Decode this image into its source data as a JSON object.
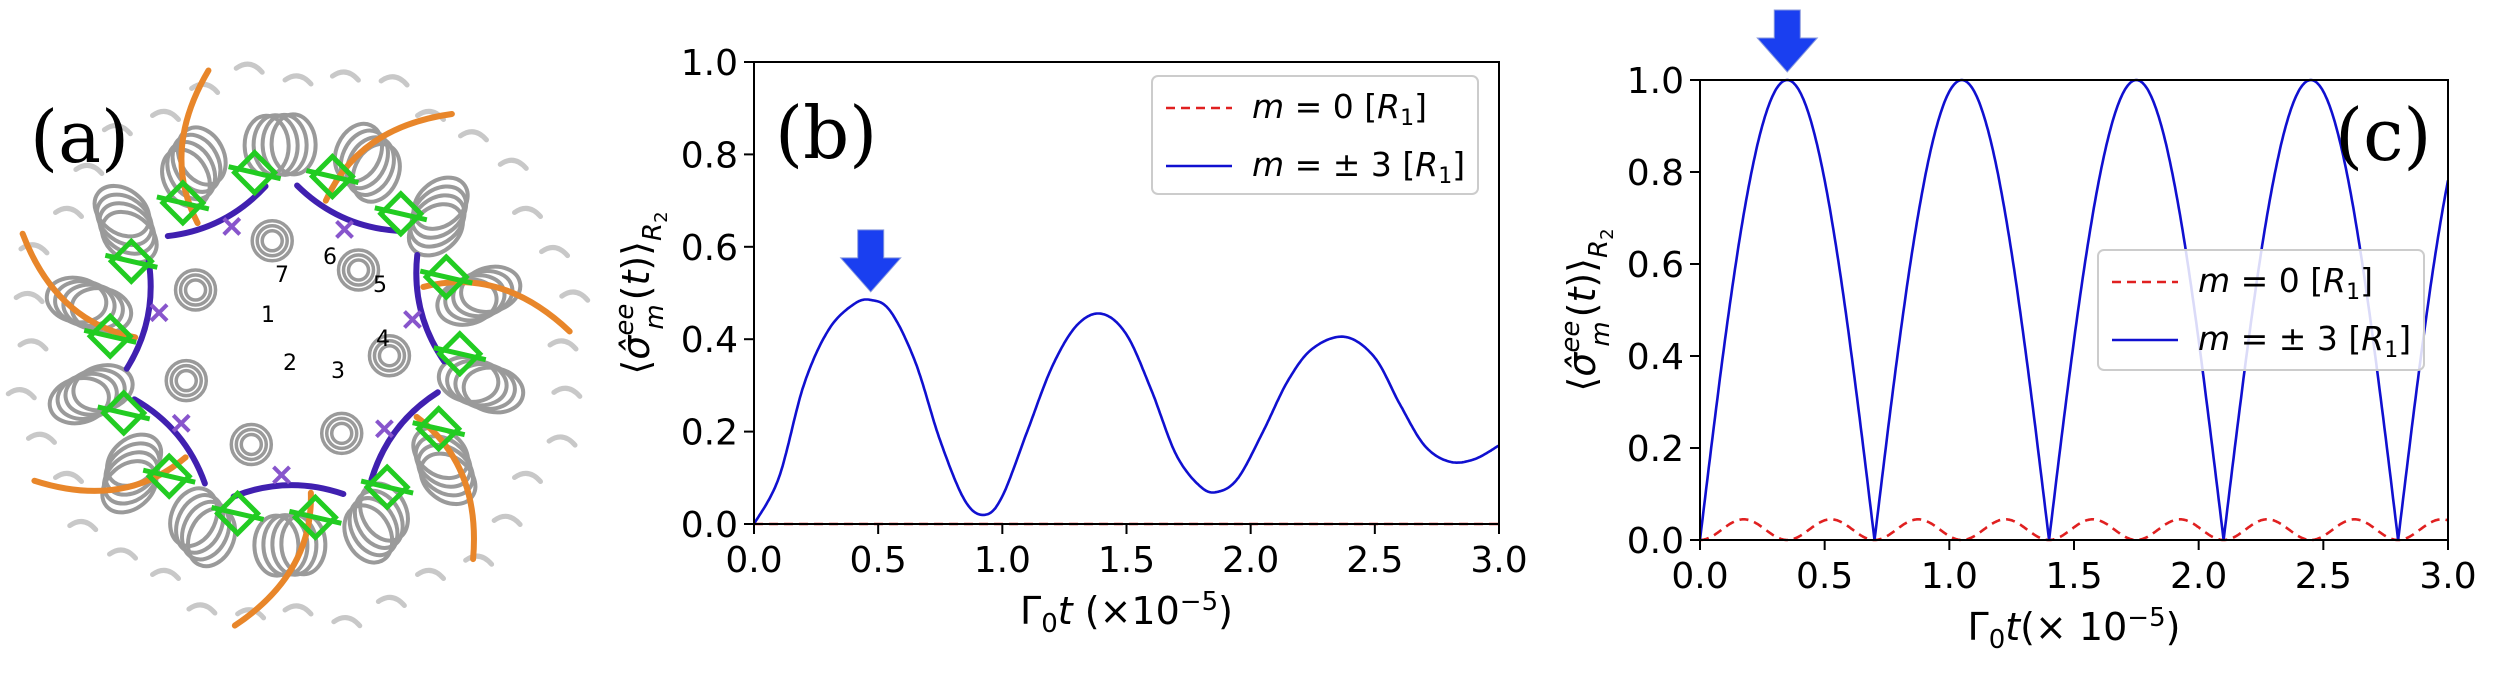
{
  "panel_a": {
    "label": "(a)",
    "ring_labels": [
      "1",
      "2",
      "3",
      "4",
      "5",
      "6",
      "7"
    ],
    "colors": {
      "helix": "#9a9a9a",
      "chlorophyll": "#22cc22",
      "carotenoid": "#e8862a",
      "link": "#4020b0",
      "ligand": "#8855cc"
    }
  },
  "chart_data": [
    {
      "panel": "(b)",
      "type": "line",
      "xlabel": "Γ₀t (×10⁻⁵)",
      "ylabel": "⟨σ̂ₘᵉᵉ(t)⟩_R₂",
      "xlim": [
        0.0,
        3.0
      ],
      "ylim": [
        0.0,
        1.0
      ],
      "xticks": [
        "0.0",
        "0.5",
        "1.0",
        "1.5",
        "2.0",
        "2.5",
        "3.0"
      ],
      "yticks": [
        "0.0",
        "0.2",
        "0.4",
        "0.6",
        "0.8",
        "1.0"
      ],
      "grid": false,
      "legend_position": "top-right",
      "arrow_at": {
        "x": 0.47,
        "y": 0.485
      },
      "series": [
        {
          "name": "m = 0 [R₁]",
          "style": "dashed",
          "color": "#e02020",
          "x": [
            0.0,
            3.0
          ],
          "y": [
            0.0,
            0.0
          ]
        },
        {
          "name": "m = ± 3 [R₁]",
          "style": "solid",
          "color": "#1010d0",
          "x": [
            0.0,
            0.1,
            0.2,
            0.3,
            0.4,
            0.47,
            0.55,
            0.65,
            0.75,
            0.85,
            0.93,
            1.0,
            1.1,
            1.2,
            1.3,
            1.4,
            1.5,
            1.6,
            1.7,
            1.8,
            1.87,
            1.95,
            2.05,
            2.15,
            2.25,
            2.38,
            2.5,
            2.6,
            2.7,
            2.8,
            2.9,
            3.0
          ],
          "y": [
            0.0,
            0.1,
            0.3,
            0.42,
            0.475,
            0.485,
            0.46,
            0.35,
            0.18,
            0.05,
            0.02,
            0.06,
            0.2,
            0.34,
            0.43,
            0.455,
            0.41,
            0.29,
            0.15,
            0.08,
            0.07,
            0.1,
            0.2,
            0.31,
            0.38,
            0.405,
            0.36,
            0.26,
            0.17,
            0.135,
            0.14,
            0.17
          ]
        }
      ]
    },
    {
      "panel": "(c)",
      "type": "line",
      "xlabel": "Γ₀t(× 10⁻⁵)",
      "ylabel": "⟨σ̂ₘᵉᵉ(t)⟩_R₂",
      "xlim": [
        0.0,
        3.0
      ],
      "ylim": [
        0.0,
        1.0
      ],
      "xticks": [
        "0.0",
        "0.5",
        "1.0",
        "1.5",
        "2.0",
        "2.5",
        "3.0"
      ],
      "yticks": [
        "0.0",
        "0.2",
        "0.4",
        "0.6",
        "0.8",
        "1.0"
      ],
      "grid": false,
      "legend_position": "center-right",
      "arrow_at": {
        "x": 0.35,
        "y": 1.0
      },
      "series": [
        {
          "name": "m = 0 [R₁]",
          "style": "dashed",
          "color": "#e02020",
          "function": "0.045*sin^2(pi*x/0.35)",
          "x_range": [
            0.0,
            3.0
          ]
        },
        {
          "name": "m = ± 3 [R₁]",
          "style": "solid",
          "color": "#1010d0",
          "function": "|sin(pi*x/0.7)|",
          "x_range": [
            0.0,
            3.0
          ],
          "peaks_x": [
            0.35,
            1.05,
            1.75,
            2.45
          ],
          "zeros_x": [
            0.0,
            0.7,
            1.4,
            2.1,
            2.8
          ]
        }
      ]
    }
  ]
}
